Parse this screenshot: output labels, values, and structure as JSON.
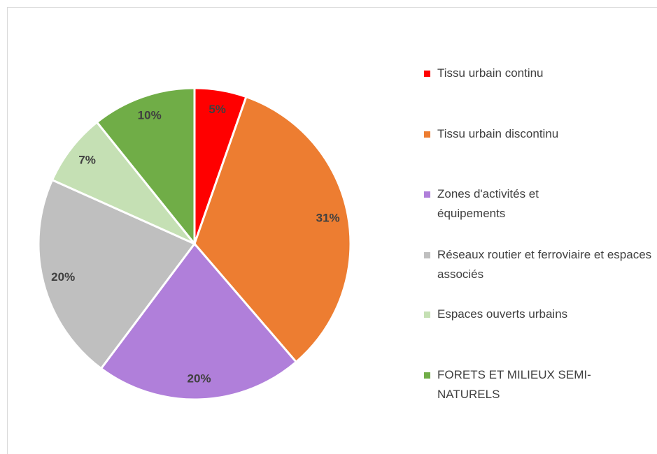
{
  "chart_data": {
    "type": "pie",
    "categories": [
      "Tissu urbain continu",
      "Tissu urbain discontinu",
      "Zones d'activités et équipements",
      "Réseaux routier et ferroviaire et espaces associés",
      "Espaces ouverts urbains",
      "FORETS ET MILIEUX SEMI-NATURELS"
    ],
    "values": [
      5,
      31,
      20,
      20,
      7,
      10
    ],
    "value_labels": [
      "5%",
      "31%",
      "20%",
      "20%",
      "7%",
      "10%"
    ],
    "colors": [
      "#ff0000",
      "#ed7d31",
      "#b07fda",
      "#bfbfbf",
      "#c5e0b4",
      "#70ad47"
    ],
    "legend": "right"
  }
}
